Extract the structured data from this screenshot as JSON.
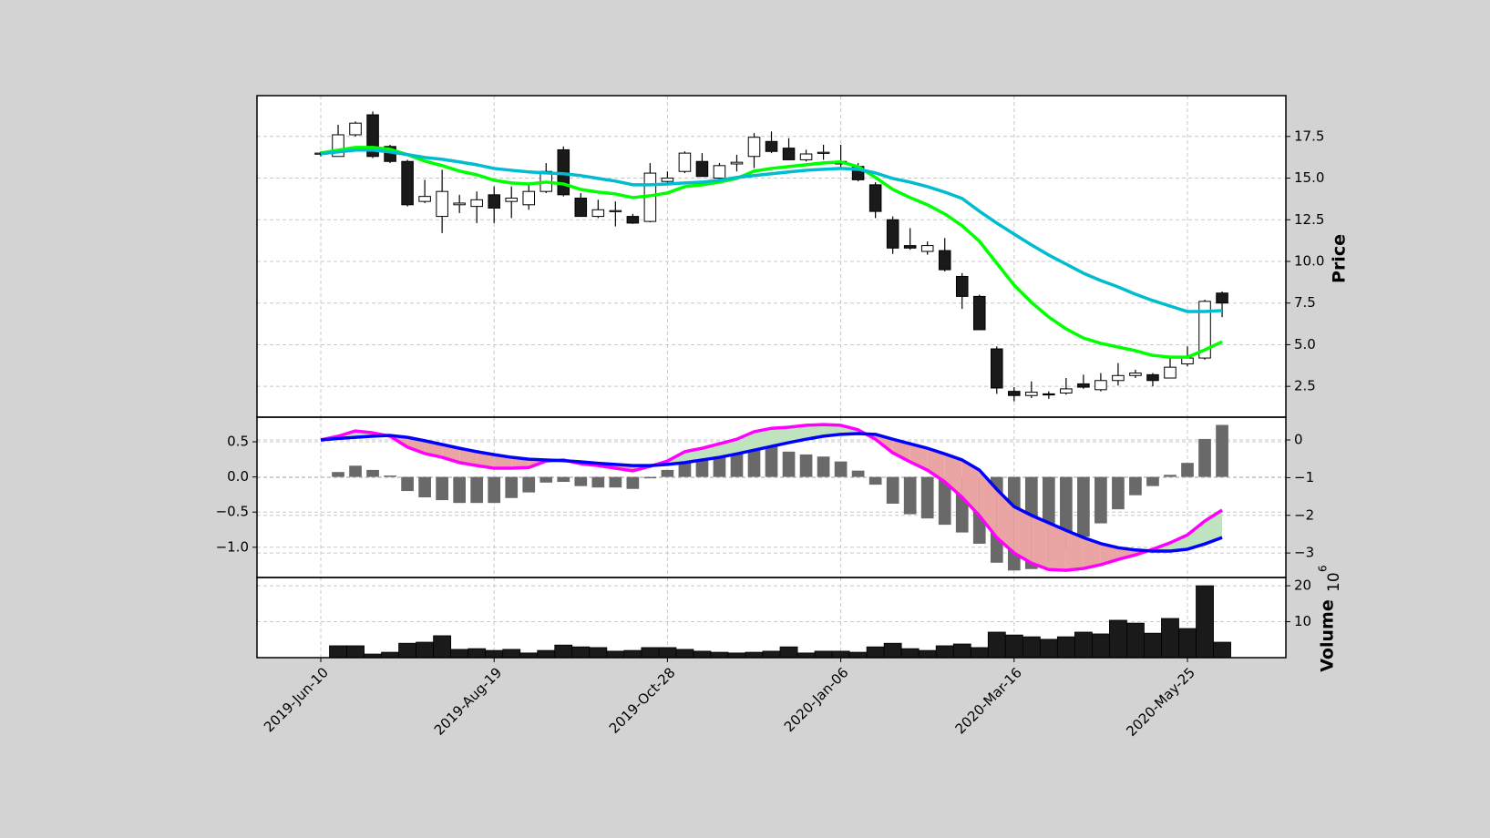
{
  "chart_data": [
    {
      "type": "candlestick",
      "ylabel": "Price",
      "x": [
        "2019-Jun-10",
        "2019-Jun-17",
        "2019-Jun-24",
        "2019-Jul-01",
        "2019-Jul-08",
        "2019-Jul-15",
        "2019-Jul-22",
        "2019-Jul-29",
        "2019-Aug-05",
        "2019-Aug-12",
        "2019-Aug-19",
        "2019-Aug-26",
        "2019-Sep-02",
        "2019-Sep-09",
        "2019-Sep-16",
        "2019-Sep-23",
        "2019-Sep-30",
        "2019-Oct-07",
        "2019-Oct-14",
        "2019-Oct-21",
        "2019-Oct-28",
        "2019-Nov-04",
        "2019-Nov-11",
        "2019-Nov-18",
        "2019-Nov-25",
        "2019-Dec-02",
        "2019-Dec-09",
        "2019-Dec-16",
        "2019-Dec-23",
        "2019-Dec-30",
        "2020-Jan-06",
        "2020-Jan-13",
        "2020-Jan-20",
        "2020-Jan-27",
        "2020-Feb-03",
        "2020-Feb-10",
        "2020-Feb-17",
        "2020-Feb-24",
        "2020-Mar-02",
        "2020-Mar-09",
        "2020-Mar-16",
        "2020-Mar-23",
        "2020-Mar-30",
        "2020-Apr-06",
        "2020-Apr-13",
        "2020-Apr-20",
        "2020-Apr-27",
        "2020-May-04",
        "2020-May-11",
        "2020-May-18",
        "2020-May-25",
        "2020-Jun-01",
        "2020-Jun-08"
      ],
      "open": [
        16.45,
        16.3,
        17.6,
        18.8,
        16.9,
        16.0,
        13.6,
        12.7,
        13.4,
        13.3,
        14.0,
        13.6,
        13.4,
        14.2,
        16.7,
        13.8,
        12.7,
        13.0,
        12.7,
        12.4,
        14.8,
        15.4,
        16.0,
        15.0,
        15.85,
        16.3,
        17.2,
        16.8,
        16.1,
        16.5,
        16.0,
        15.7,
        14.6,
        12.5,
        10.95,
        10.6,
        10.65,
        9.1,
        7.9,
        4.75,
        2.2,
        1.95,
        2.05,
        2.1,
        2.65,
        2.3,
        2.85,
        3.15,
        3.2,
        3.0,
        3.85,
        4.2,
        8.1
      ],
      "high": [
        16.6,
        18.2,
        18.4,
        19.0,
        17.0,
        16.1,
        14.9,
        15.5,
        14.0,
        14.2,
        14.5,
        14.5,
        14.6,
        15.9,
        16.9,
        14.1,
        13.7,
        13.6,
        12.85,
        15.9,
        15.4,
        16.6,
        16.5,
        15.9,
        16.4,
        17.7,
        17.8,
        17.4,
        16.7,
        17.0,
        17.0,
        15.9,
        14.75,
        12.7,
        12.0,
        11.2,
        11.4,
        9.3,
        8.0,
        4.9,
        2.45,
        2.8,
        2.2,
        3.0,
        3.2,
        3.3,
        3.9,
        3.5,
        3.3,
        4.2,
        4.9,
        7.7,
        8.2
      ],
      "low": [
        16.3,
        16.3,
        17.5,
        16.2,
        15.9,
        13.3,
        13.5,
        11.7,
        12.9,
        12.3,
        12.3,
        12.6,
        13.1,
        14.1,
        13.9,
        12.7,
        12.6,
        12.1,
        12.25,
        12.35,
        14.7,
        15.3,
        15.1,
        14.9,
        15.4,
        15.6,
        16.5,
        16.1,
        16.0,
        16.1,
        15.5,
        14.8,
        12.6,
        10.45,
        10.7,
        10.4,
        9.4,
        7.15,
        5.9,
        2.05,
        1.6,
        1.8,
        1.75,
        2.0,
        2.35,
        2.2,
        2.55,
        3.0,
        2.5,
        3.0,
        3.7,
        4.1,
        6.65
      ],
      "close": [
        16.5,
        17.6,
        18.3,
        16.3,
        16.0,
        13.4,
        13.9,
        14.2,
        13.5,
        13.7,
        13.2,
        13.8,
        14.2,
        15.4,
        14.0,
        12.7,
        13.1,
        13.05,
        12.3,
        15.3,
        15.0,
        16.5,
        15.1,
        15.75,
        15.95,
        17.45,
        16.6,
        16.1,
        16.45,
        16.55,
        15.85,
        14.9,
        13.0,
        10.8,
        10.8,
        10.95,
        9.5,
        7.9,
        5.9,
        2.4,
        1.95,
        2.15,
        2.0,
        2.35,
        2.45,
        2.85,
        3.15,
        3.3,
        2.85,
        3.65,
        4.2,
        7.6,
        7.5
      ],
      "up_color": "#ffffff",
      "down_color": "#1a1a1a",
      "series": [
        {
          "color": "#00ff00",
          "values": [
            16.51,
            16.68,
            16.84,
            16.84,
            16.73,
            16.41,
            16.02,
            15.75,
            15.42,
            15.2,
            14.87,
            14.71,
            14.65,
            14.76,
            14.65,
            14.32,
            14.16,
            14.05,
            13.83,
            13.94,
            14.11,
            14.49,
            14.6,
            14.76,
            14.98,
            15.42,
            15.58,
            15.69,
            15.8,
            15.91,
            15.97,
            15.69,
            15.04,
            14.32,
            13.83,
            13.4,
            12.85,
            12.14,
            11.21,
            9.89,
            8.58,
            7.54,
            6.66,
            5.95,
            5.4,
            5.08,
            4.86,
            4.64,
            4.36,
            4.25,
            4.25,
            4.69,
            5.18
          ]
        },
        {
          "color": "#00bcd0",
          "values": [
            16.46,
            16.57,
            16.68,
            16.68,
            16.57,
            16.41,
            16.24,
            16.13,
            15.97,
            15.8,
            15.58,
            15.47,
            15.37,
            15.31,
            15.26,
            15.15,
            14.98,
            14.82,
            14.6,
            14.6,
            14.65,
            14.71,
            14.76,
            14.87,
            15.04,
            15.15,
            15.26,
            15.37,
            15.47,
            15.53,
            15.58,
            15.53,
            15.31,
            14.98,
            14.76,
            14.49,
            14.16,
            13.78,
            13.01,
            12.3,
            11.64,
            10.99,
            10.38,
            9.84,
            9.29,
            8.85,
            8.47,
            8.03,
            7.65,
            7.32,
            6.99,
            6.99,
            7.05
          ]
        }
      ],
      "ylim": [
        0.65,
        19.95
      ],
      "yticks": [
        2.5,
        {
          "value": 5,
          "label": "5.0"
        },
        7.5,
        {
          "value": 10,
          "label": "10.0"
        },
        12.5,
        {
          "value": 15,
          "label": "15.0"
        },
        17.5
      ],
      "xticks": [
        "2019-Jun-10",
        "2019-Aug-19",
        "2019-Oct-28",
        "2020-Jan-06",
        "2020-Mar-16",
        "2020-May-25"
      ],
      "grid": true
    },
    {
      "type": "macd",
      "histogram": {
        "color": "#696969",
        "values": [
          null,
          0.07,
          0.16,
          0.1,
          0.02,
          -0.2,
          -0.29,
          -0.33,
          -0.37,
          -0.37,
          -0.37,
          -0.3,
          -0.22,
          -0.08,
          -0.07,
          -0.13,
          -0.15,
          -0.15,
          -0.17,
          -0.02,
          0.1,
          0.27,
          0.28,
          0.33,
          0.38,
          0.44,
          0.46,
          0.36,
          0.32,
          0.29,
          0.22,
          0.09,
          -0.11,
          -0.38,
          -0.53,
          -0.59,
          -0.68,
          -0.79,
          -0.95,
          -1.22,
          -1.33,
          -1.31,
          -1.22,
          -1.05,
          -0.85,
          -0.66,
          -0.46,
          -0.26,
          -0.13,
          0.03,
          0.2,
          0.54,
          0.74
        ]
      },
      "series": [
        {
          "color": "#ff00ff",
          "axis": "y2",
          "values": [
            0,
            0.1,
            0.24,
            0.19,
            0.1,
            -0.19,
            -0.36,
            -0.46,
            -0.6,
            -0.68,
            -0.75,
            -0.75,
            -0.73,
            -0.56,
            -0.53,
            -0.63,
            -0.68,
            -0.75,
            -0.82,
            -0.7,
            -0.56,
            -0.31,
            -0.22,
            -0.1,
            0.02,
            0.22,
            0.31,
            0.34,
            0.39,
            0.41,
            0.39,
            0.27,
            0.02,
            -0.34,
            -0.58,
            -0.8,
            -1.11,
            -1.52,
            -2.01,
            -2.59,
            -3.0,
            -3.27,
            -3.44,
            -3.46,
            -3.41,
            -3.31,
            -3.17,
            -3.05,
            -2.9,
            -2.73,
            -2.52,
            -2.15,
            -1.86
          ]
        },
        {
          "color": "#0000ff",
          "axis": "y2",
          "values": [
            0,
            0.04,
            0.07,
            0.1,
            0.12,
            0.07,
            -0.02,
            -0.12,
            -0.22,
            -0.31,
            -0.39,
            -0.46,
            -0.51,
            -0.53,
            -0.55,
            -0.58,
            -0.62,
            -0.65,
            -0.68,
            -0.68,
            -0.65,
            -0.6,
            -0.53,
            -0.46,
            -0.37,
            -0.27,
            -0.17,
            -0.07,
            0.02,
            0.1,
            0.15,
            0.17,
            0.15,
            0.02,
            -0.1,
            -0.22,
            -0.37,
            -0.53,
            -0.8,
            -1.31,
            -1.77,
            -2.0,
            -2.2,
            -2.4,
            -2.59,
            -2.75,
            -2.86,
            -2.92,
            -2.95,
            -2.95,
            -2.9,
            -2.76,
            -2.59
          ]
        }
      ],
      "fill_above_color": "#bfe3bf",
      "fill_below_color": "#eba4a4",
      "ylim": [
        -1.43,
        0.85
      ],
      "yticks": [
        0.5,
        {
          "value": 0,
          "label": "0.0"
        },
        {
          "value": -0.5,
          "label": "−0.5"
        },
        {
          "value": -1,
          "label": "−1.0"
        }
      ],
      "y2lim": [
        -3.65,
        0.605
      ],
      "y2ticks": [
        0,
        {
          "value": -1,
          "label": "−1"
        },
        {
          "value": -2,
          "label": "−2"
        },
        {
          "value": -3,
          "label": "−3"
        }
      ],
      "grid": true
    },
    {
      "type": "bar",
      "ylabel": "Volume",
      "scale_base": "10",
      "scale_exponent": "6",
      "color": "#1a1a1a",
      "values": [
        null,
        3.3,
        3.3,
        1.0,
        1.5,
        4.0,
        4.3,
        6.1,
        2.3,
        2.5,
        2.0,
        2.3,
        1.3,
        2.0,
        3.5,
        3.0,
        2.8,
        1.8,
        2.0,
        2.8,
        2.8,
        2.3,
        1.8,
        1.5,
        1.3,
        1.5,
        1.8,
        3.0,
        1.3,
        1.8,
        1.8,
        1.5,
        3.0,
        4.0,
        2.5,
        2.0,
        3.3,
        3.8,
        2.8,
        7.1,
        6.3,
        5.8,
        5.1,
        5.8,
        7.1,
        6.6,
        10.4,
        9.6,
        6.8,
        10.9,
        8.1,
        20.0,
        4.3
      ],
      "ylim": [
        0,
        22.3
      ],
      "yticks": [
        10,
        20
      ],
      "grid": true
    }
  ]
}
